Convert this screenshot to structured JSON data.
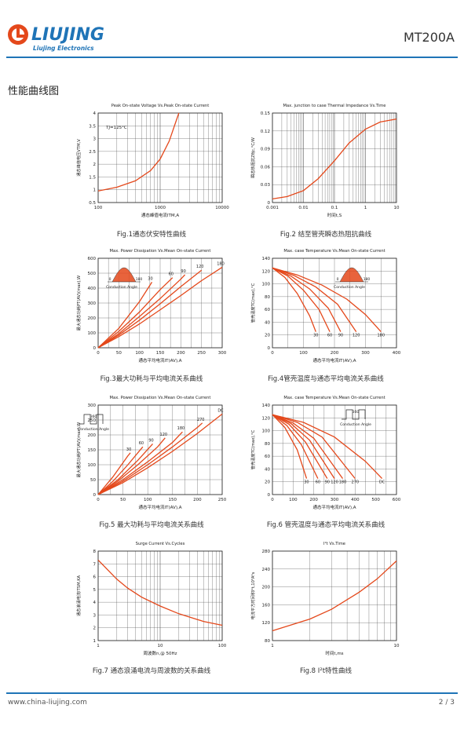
{
  "header": {
    "logo_text": "LIUJING",
    "logo_subtext": "Liujing Electronics",
    "model": "MT200A"
  },
  "section_title": "性能曲线图",
  "colors": {
    "curve": "#e4481b",
    "rule": "#1f74b7",
    "logo": "#1f74b7"
  },
  "figures": [
    {
      "id": 1,
      "title": "Peak On-state Voltage Vs.Peak On-state Current",
      "caption": "Fig.1通态伏安特性曲线",
      "xlabel": "通态峰值电流ITM,A",
      "ylabel": "通态峰值电压VTM,V",
      "annotation": "TJ=125°C",
      "chart_data": {
        "type": "line",
        "xscale": "log",
        "xlim": [
          100,
          10000
        ],
        "ylim": [
          0.5,
          4
        ],
        "xticks": [
          "100",
          "1000",
          "10000"
        ],
        "yticks": [
          "0.5",
          "1",
          "1.5",
          "2",
          "2.5",
          "3",
          "3.5",
          "4"
        ],
        "series": [
          {
            "x": [
              100,
              200,
              400,
              700,
              1000,
              1400,
              2000
            ],
            "y": [
              0.95,
              1.1,
              1.35,
              1.75,
              2.2,
              2.9,
              4.0
            ]
          }
        ]
      }
    },
    {
      "id": 2,
      "title": "Max. junction to case Thermal Impedance Vs.Time",
      "caption": "Fig.2 结至管壳瞬态热阻抗曲线",
      "xlabel": "时间t,S",
      "ylabel": "瞬态热阻抗Zθjc,°C/W",
      "chart_data": {
        "type": "line",
        "xscale": "log",
        "xlim": [
          0.001,
          10
        ],
        "ylim": [
          0,
          0.15
        ],
        "xticks": [
          "0.001",
          "0.01",
          "0.1",
          "1",
          "10"
        ],
        "yticks": [
          "0",
          "0.03",
          "0.06",
          "0.09",
          "0.12",
          "0.15"
        ],
        "series": [
          {
            "x": [
              0.001,
              0.003,
              0.01,
              0.03,
              0.1,
              0.3,
              1,
              3,
              10
            ],
            "y": [
              0.006,
              0.01,
              0.02,
              0.04,
              0.07,
              0.1,
              0.123,
              0.135,
              0.14
            ]
          }
        ]
      }
    },
    {
      "id": 3,
      "title": "Max. Power Dissipation Vs.Mean On-state Current",
      "caption": "Fig.3最大功耗与平均电流关系曲线",
      "xlabel": "通态平均电流IT(AV),A",
      "ylabel": "最大通态功耗PT(AV)(max),W",
      "inset": {
        "left": "0",
        "right": "180",
        "label": "Conduction Angle"
      },
      "chart_data": {
        "type": "line",
        "xlim": [
          0,
          300
        ],
        "ylim": [
          0,
          600
        ],
        "xticks": [
          "0",
          "50",
          "100",
          "150",
          "200",
          "250",
          "300"
        ],
        "yticks": [
          "0",
          "100",
          "200",
          "300",
          "400",
          "500",
          "600"
        ],
        "series": [
          {
            "name": "30",
            "x": [
              0,
              50,
              100,
              130
            ],
            "y": [
              0,
              130,
              310,
              440
            ]
          },
          {
            "name": "60",
            "x": [
              0,
              50,
              100,
              150,
              180
            ],
            "y": [
              0,
              110,
              240,
              390,
              470
            ]
          },
          {
            "name": "90",
            "x": [
              0,
              50,
              100,
              150,
              200,
              210
            ],
            "y": [
              0,
              95,
              210,
              330,
              460,
              490
            ]
          },
          {
            "name": "120",
            "x": [
              0,
              50,
              100,
              150,
              200,
              250
            ],
            "y": [
              0,
              85,
              185,
              295,
              410,
              520
            ]
          },
          {
            "name": "180",
            "x": [
              0,
              50,
              100,
              150,
              200,
              250,
              300
            ],
            "y": [
              0,
              75,
              160,
              255,
              350,
              450,
              540
            ]
          }
        ]
      }
    },
    {
      "id": 4,
      "title": "Max. case Temperature Vs.Mean On-state Current",
      "caption": "Fig.4管壳温度与通态平均电流关系曲线",
      "xlabel": "通态平均电流IT(AV),A",
      "ylabel": "管壳温度TC(max),°C",
      "inset": {
        "left": "0",
        "right": "180",
        "label": "Conduction Angle"
      },
      "chart_data": {
        "type": "line",
        "xlim": [
          0,
          400
        ],
        "ylim": [
          0,
          140
        ],
        "xticks": [
          "0",
          "100",
          "200",
          "300",
          "400"
        ],
        "yticks": [
          "0",
          "20",
          "40",
          "60",
          "80",
          "100",
          "120",
          "140"
        ],
        "series": [
          {
            "name": "30",
            "x": [
              0,
              40,
              80,
              120,
              140
            ],
            "y": [
              125,
              110,
              85,
              50,
              25
            ]
          },
          {
            "name": "60",
            "x": [
              0,
              50,
              100,
              150,
              185
            ],
            "y": [
              125,
              112,
              90,
              60,
              25
            ]
          },
          {
            "name": "90",
            "x": [
              0,
              60,
              120,
              180,
              220
            ],
            "y": [
              125,
              112,
              92,
              62,
              25
            ]
          },
          {
            "name": "120",
            "x": [
              0,
              70,
              140,
              210,
              270
            ],
            "y": [
              125,
              113,
              95,
              68,
              25
            ]
          },
          {
            "name": "180",
            "x": [
              0,
              80,
              160,
              240,
              300,
              350
            ],
            "y": [
              125,
              114,
              98,
              76,
              52,
              25
            ]
          }
        ]
      }
    },
    {
      "id": 5,
      "title": "Max. Power Dissipation Vs.Mean On-state Current",
      "caption": "Fig.5 最大功耗与平均电流关系曲线",
      "xlabel": "通态平均电流IT(AV),A",
      "ylabel": "最大通态功耗PT(AV)(max),W",
      "inset": {
        "left": "360",
        "label": "Conduction Angle"
      },
      "chart_data": {
        "type": "line",
        "xlim": [
          0,
          250
        ],
        "ylim": [
          0,
          300
        ],
        "xticks": [
          "0",
          "50",
          "100",
          "150",
          "200",
          "250"
        ],
        "yticks": [
          "0",
          "50",
          "100",
          "150",
          "200",
          "250",
          "300"
        ],
        "series": [
          {
            "name": "30",
            "x": [
              0,
              30,
              60,
              65
            ],
            "y": [
              0,
              60,
              130,
              140
            ]
          },
          {
            "name": "60",
            "x": [
              0,
              30,
              60,
              90
            ],
            "y": [
              0,
              45,
              100,
              160
            ]
          },
          {
            "name": "90",
            "x": [
              0,
              40,
              80,
              110
            ],
            "y": [
              0,
              50,
              115,
              170
            ]
          },
          {
            "name": "120",
            "x": [
              0,
              40,
              80,
              120,
              135
            ],
            "y": [
              0,
              45,
              100,
              160,
              190
            ]
          },
          {
            "name": "180",
            "x": [
              0,
              50,
              100,
              150,
              170
            ],
            "y": [
              0,
              50,
              110,
              175,
              210
            ]
          },
          {
            "name": "270",
            "x": [
              0,
              50,
              100,
              150,
              200,
              210
            ],
            "y": [
              0,
              45,
              100,
              160,
              225,
              240
            ]
          },
          {
            "name": "DC",
            "x": [
              0,
              50,
              100,
              150,
              200,
              250
            ],
            "y": [
              0,
              40,
              90,
              145,
              205,
              270
            ]
          }
        ]
      }
    },
    {
      "id": 6,
      "title": "Max. case Temperature Vs.Mean On-state Current",
      "caption": "Fig.6 管壳温度与通态平均电流关系曲线",
      "xlabel": "通态平均电流IT(AV),A",
      "ylabel": "管壳温度TC(max),°C",
      "inset": {
        "left": "360",
        "label": "Conduction Angle"
      },
      "chart_data": {
        "type": "line",
        "xlim": [
          0,
          600
        ],
        "ylim": [
          0,
          140
        ],
        "xticks": [
          "0",
          "100",
          "200",
          "300",
          "400",
          "500",
          "600"
        ],
        "yticks": [
          "0",
          "20",
          "40",
          "60",
          "80",
          "100",
          "120",
          "140"
        ],
        "series": [
          {
            "name": "30",
            "x": [
              0,
              60,
              120,
              165
            ],
            "y": [
              125,
              105,
              70,
              25
            ]
          },
          {
            "name": "60",
            "x": [
              0,
              70,
              140,
              220
            ],
            "y": [
              125,
              108,
              78,
              25
            ]
          },
          {
            "name": "90",
            "x": [
              0,
              80,
              160,
              265
            ],
            "y": [
              125,
              110,
              82,
              25
            ]
          },
          {
            "name": "120",
            "x": [
              0,
              90,
              180,
              300
            ],
            "y": [
              125,
              111,
              85,
              25
            ]
          },
          {
            "name": "180",
            "x": [
              0,
              100,
              200,
              340
            ],
            "y": [
              125,
              112,
              88,
              25
            ]
          },
          {
            "name": "270",
            "x": [
              0,
              120,
              240,
              400
            ],
            "y": [
              125,
              113,
              90,
              25
            ]
          },
          {
            "name": "DC",
            "x": [
              0,
              150,
              300,
              450,
              530
            ],
            "y": [
              125,
              113,
              90,
              52,
              25
            ]
          }
        ]
      }
    },
    {
      "id": 7,
      "title": "Surge Current Vs.Cycles",
      "caption": "Fig.7 通态浪涌电流与周波数的关系曲线",
      "xlabel": "周波数n,@ 50Hz",
      "ylabel": "通态浪涌电流ITSM,KA",
      "chart_data": {
        "type": "line",
        "xscale": "log",
        "xlim": [
          1,
          100
        ],
        "ylim": [
          1,
          8
        ],
        "xticks": [
          "1",
          "10",
          "100"
        ],
        "yticks": [
          "1",
          "2",
          "3",
          "4",
          "5",
          "6",
          "7",
          "8"
        ],
        "series": [
          {
            "x": [
              1,
              2,
              3,
              5,
              10,
              20,
              50,
              100
            ],
            "y": [
              7.3,
              5.8,
              5.1,
              4.4,
              3.7,
              3.1,
              2.5,
              2.2
            ]
          }
        ]
      }
    },
    {
      "id": 8,
      "title": "I²t Vs.Time",
      "caption": "Fig.8 I²t特性曲线",
      "xlabel": "时间t,ms",
      "ylabel": "电流平方时间积I²t,10³A²s",
      "chart_data": {
        "type": "line",
        "xscale": "log",
        "xlim": [
          1,
          10
        ],
        "ylim": [
          80,
          280
        ],
        "xticks": [
          "1",
          "10"
        ],
        "yticks": [
          "80",
          "120",
          "160",
          "200",
          "240",
          "280"
        ],
        "series": [
          {
            "x": [
              1,
              2,
              3,
              5,
              7,
              10
            ],
            "y": [
              102,
              128,
              150,
              188,
              218,
              258
            ]
          }
        ]
      }
    }
  ],
  "footer": {
    "url": "www.china-liujing.com",
    "page": "2 / 3"
  }
}
